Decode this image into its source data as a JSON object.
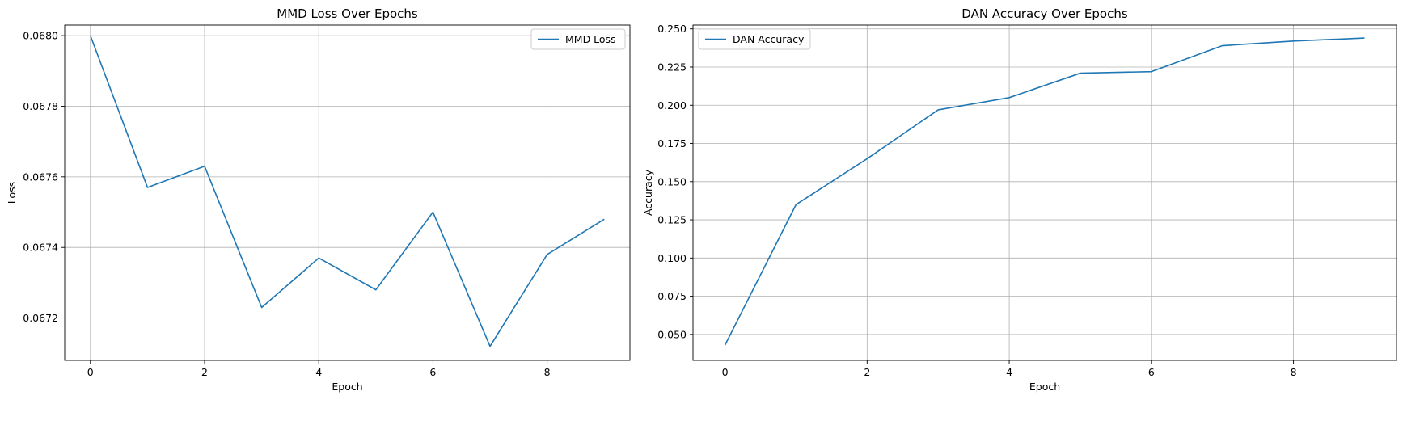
{
  "colors": {
    "line": "#1f77b4",
    "grid": "#b0b0b0",
    "axis": "#000000",
    "legend_border": "#cccccc"
  },
  "chart_data": [
    {
      "type": "line",
      "title": "MMD Loss Over Epochs",
      "xlabel": "Epoch",
      "ylabel": "Loss",
      "x": [
        0,
        1,
        2,
        3,
        4,
        5,
        6,
        7,
        8,
        9
      ],
      "xlim": [
        -0.45,
        9.45
      ],
      "ylim": [
        0.06708,
        0.06803
      ],
      "xticks": [
        0,
        2,
        4,
        6,
        8
      ],
      "yticks": [
        0.0672,
        0.0674,
        0.0676,
        0.0678,
        0.068
      ],
      "ytick_labels": [
        "0.0672",
        "0.0674",
        "0.0676",
        "0.0678",
        "0.0680"
      ],
      "grid": true,
      "legend_position": "upper-right",
      "series": [
        {
          "name": "MMD Loss",
          "values": [
            0.068,
            0.06757,
            0.06763,
            0.06723,
            0.06737,
            0.06728,
            0.0675,
            0.06712,
            0.06738,
            0.06748
          ]
        }
      ]
    },
    {
      "type": "line",
      "title": "DAN Accuracy Over Epochs",
      "xlabel": "Epoch",
      "ylabel": "Accuracy",
      "x": [
        0,
        1,
        2,
        3,
        4,
        5,
        6,
        7,
        8,
        9
      ],
      "xlim": [
        -0.45,
        9.45
      ],
      "ylim": [
        0.033,
        0.2525
      ],
      "xticks": [
        0,
        2,
        4,
        6,
        8
      ],
      "yticks": [
        0.05,
        0.075,
        0.1,
        0.125,
        0.15,
        0.175,
        0.2,
        0.225,
        0.25
      ],
      "ytick_labels": [
        "0.050",
        "0.075",
        "0.100",
        "0.125",
        "0.150",
        "0.175",
        "0.200",
        "0.225",
        "0.250"
      ],
      "grid": true,
      "legend_position": "upper-left",
      "series": [
        {
          "name": "DAN Accuracy",
          "values": [
            0.043,
            0.135,
            0.165,
            0.197,
            0.205,
            0.221,
            0.222,
            0.239,
            0.242,
            0.244
          ]
        }
      ]
    }
  ]
}
